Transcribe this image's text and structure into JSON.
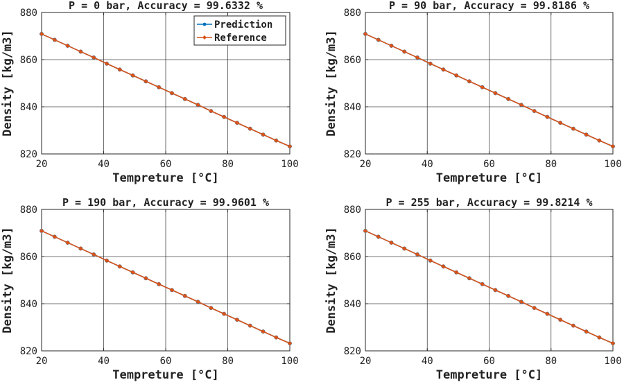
{
  "figure": {
    "colors": {
      "prediction": "#0072BD",
      "reference": "#D95319",
      "grid": "#262626",
      "axis": "#262626"
    }
  },
  "chart_data": [
    {
      "type": "line",
      "title": "P = 0 bar, Accuracy = 99.6332 %",
      "xlabel": "Tempreture [°C]",
      "ylabel": "Density [kg/m3]",
      "xlim": [
        20,
        100
      ],
      "ylim": [
        820,
        880
      ],
      "xticks": [
        20,
        40,
        60,
        80,
        100
      ],
      "yticks": [
        820,
        840,
        860,
        880
      ],
      "grid": true,
      "legend": {
        "location": "top-right",
        "entries": [
          "Prediction",
          "Reference"
        ]
      },
      "x": [
        20,
        24.2,
        28.4,
        32.6,
        36.8,
        41,
        45.2,
        49.4,
        53.6,
        57.8,
        62,
        66.2,
        70.4,
        74.6,
        78.8,
        83,
        87.2,
        91.4,
        95.6,
        100
      ],
      "series": [
        {
          "name": "Prediction",
          "values": [
            870.9,
            868.4,
            865.9,
            863.4,
            860.9,
            858.3,
            855.8,
            853.3,
            850.8,
            848.3,
            845.8,
            843.3,
            840.8,
            838.2,
            835.7,
            833.2,
            830.7,
            828.2,
            825.7,
            823.2
          ]
        },
        {
          "name": "Reference",
          "values": [
            870.9,
            868.4,
            865.9,
            863.4,
            860.9,
            858.3,
            855.8,
            853.3,
            850.8,
            848.3,
            845.8,
            843.3,
            840.8,
            838.2,
            835.7,
            833.2,
            830.7,
            828.2,
            825.7,
            823.2
          ]
        }
      ]
    },
    {
      "type": "line",
      "title": "P = 90 bar, Accuracy = 99.8186 %",
      "xlabel": "Tempreture [°C]",
      "ylabel": "Density [kg/m3]",
      "xlim": [
        20,
        100
      ],
      "ylim": [
        820,
        880
      ],
      "xticks": [
        20,
        40,
        60,
        80,
        100
      ],
      "yticks": [
        820,
        840,
        860,
        880
      ],
      "grid": true,
      "x": [
        20,
        24.2,
        28.4,
        32.6,
        36.8,
        41,
        45.2,
        49.4,
        53.6,
        57.8,
        62,
        66.2,
        70.4,
        74.6,
        78.8,
        83,
        87.2,
        91.4,
        95.6,
        100
      ],
      "series": [
        {
          "name": "Prediction",
          "values": [
            870.9,
            868.4,
            865.9,
            863.4,
            860.9,
            858.3,
            855.8,
            853.3,
            850.8,
            848.3,
            845.8,
            843.3,
            840.8,
            838.2,
            835.7,
            833.2,
            830.7,
            828.2,
            825.7,
            823.2
          ]
        },
        {
          "name": "Reference",
          "values": [
            870.9,
            868.4,
            865.9,
            863.4,
            860.9,
            858.3,
            855.8,
            853.3,
            850.8,
            848.3,
            845.8,
            843.3,
            840.8,
            838.2,
            835.7,
            833.2,
            830.7,
            828.2,
            825.7,
            823.2
          ]
        }
      ]
    },
    {
      "type": "line",
      "title": "P = 190 bar, Accuracy = 99.9601 %",
      "xlabel": "Tempreture [°C]",
      "ylabel": "Density [kg/m3]",
      "xlim": [
        20,
        100
      ],
      "ylim": [
        820,
        880
      ],
      "xticks": [
        20,
        40,
        60,
        80,
        100
      ],
      "yticks": [
        820,
        840,
        860,
        880
      ],
      "grid": true,
      "x": [
        20,
        24.2,
        28.4,
        32.6,
        36.8,
        41,
        45.2,
        49.4,
        53.6,
        57.8,
        62,
        66.2,
        70.4,
        74.6,
        78.8,
        83,
        87.2,
        91.4,
        95.6,
        100
      ],
      "series": [
        {
          "name": "Prediction",
          "values": [
            870.9,
            868.4,
            865.9,
            863.4,
            860.9,
            858.3,
            855.8,
            853.3,
            850.8,
            848.3,
            845.8,
            843.3,
            840.8,
            838.2,
            835.7,
            833.2,
            830.7,
            828.2,
            825.7,
            823.2
          ]
        },
        {
          "name": "Reference",
          "values": [
            870.9,
            868.4,
            865.9,
            863.4,
            860.9,
            858.3,
            855.8,
            853.3,
            850.8,
            848.3,
            845.8,
            843.3,
            840.8,
            838.2,
            835.7,
            833.2,
            830.7,
            828.2,
            825.7,
            823.2
          ]
        }
      ]
    },
    {
      "type": "line",
      "title": "P = 255 bar, Accuracy = 99.8214 %",
      "xlabel": "Tempreture [°C]",
      "ylabel": "Density [kg/m3]",
      "xlim": [
        20,
        100
      ],
      "ylim": [
        820,
        880
      ],
      "xticks": [
        20,
        40,
        60,
        80,
        100
      ],
      "yticks": [
        820,
        840,
        860,
        880
      ],
      "grid": true,
      "x": [
        20,
        24.2,
        28.4,
        32.6,
        36.8,
        41,
        45.2,
        49.4,
        53.6,
        57.8,
        62,
        66.2,
        70.4,
        74.6,
        78.8,
        83,
        87.2,
        91.4,
        95.6,
        100
      ],
      "series": [
        {
          "name": "Prediction",
          "values": [
            870.9,
            868.4,
            865.9,
            863.4,
            860.9,
            858.3,
            855.8,
            853.3,
            850.8,
            848.3,
            845.8,
            843.3,
            840.8,
            838.2,
            835.7,
            833.2,
            830.7,
            828.2,
            825.7,
            823.2
          ]
        },
        {
          "name": "Reference",
          "values": [
            870.9,
            868.4,
            865.9,
            863.4,
            860.9,
            858.3,
            855.8,
            853.3,
            850.8,
            848.3,
            845.8,
            843.3,
            840.8,
            838.2,
            835.7,
            833.2,
            830.7,
            828.2,
            825.7,
            823.2
          ]
        }
      ]
    }
  ]
}
